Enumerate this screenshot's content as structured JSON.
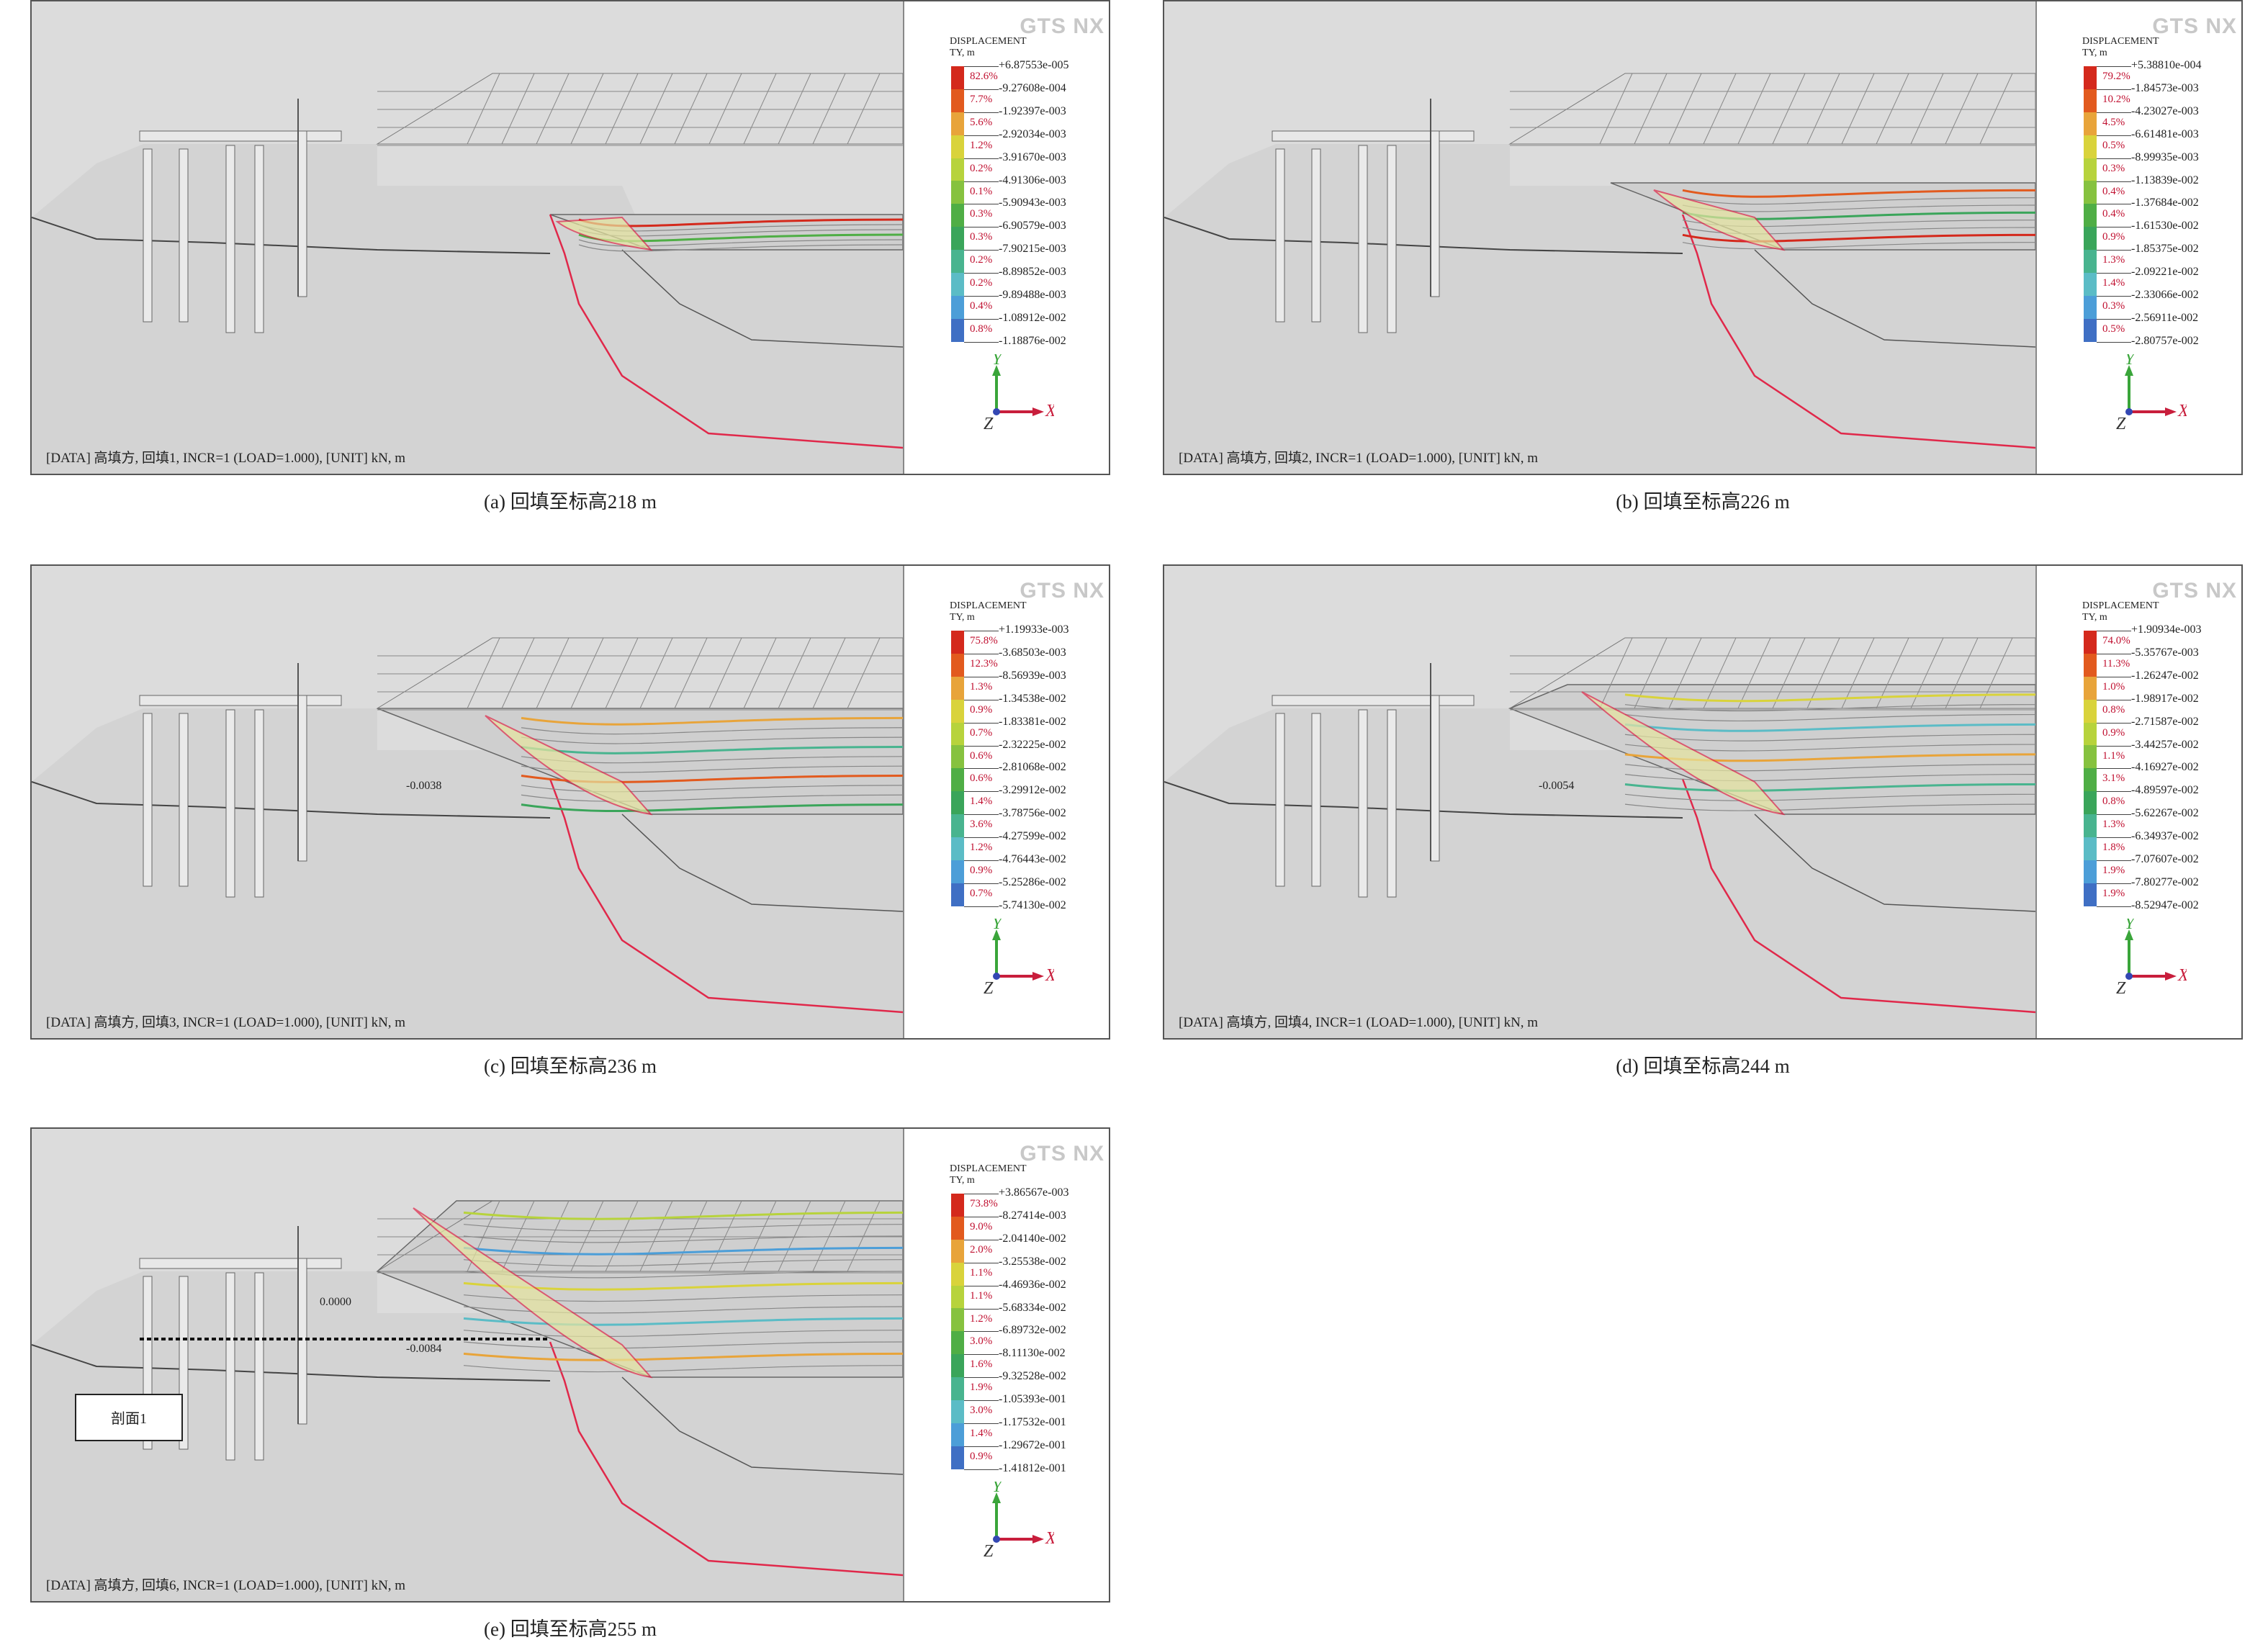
{
  "legend_title": "DISPLACEMENT",
  "legend_unit": "TY, m",
  "logo_text": "GTS NX",
  "axes": {
    "x": "X",
    "y": "Y",
    "z": "Z"
  },
  "colors": [
    "#d4291c",
    "#e25a1e",
    "#e8a43a",
    "#d9d33b",
    "#b7d33c",
    "#86c23f",
    "#4fae45",
    "#3aa55a",
    "#48b48f",
    "#5bbcc6",
    "#4c9ed8",
    "#3f6fc4",
    "#2d3f9a"
  ],
  "panels": [
    {
      "caption": "(a) 回填至标高218 m",
      "info": "[DATA] 高填方, 回填1, INCR=1 (LOAD=1.000), [UNIT] kN, m",
      "values": [
        "+6.87553e-005",
        "-9.27608e-004",
        "-1.92397e-003",
        "-2.92034e-003",
        "-3.91670e-003",
        "-4.91306e-003",
        "-5.90943e-003",
        "-6.90579e-003",
        "-7.90215e-003",
        "-8.89852e-003",
        "-9.89488e-003",
        "-1.08912e-002",
        "-1.18876e-002"
      ],
      "percents": [
        "82.6%",
        "7.7%",
        "5.6%",
        "1.2%",
        "0.2%",
        "0.1%",
        "0.3%",
        "0.3%",
        "0.2%",
        "0.2%",
        "0.4%",
        "0.8%"
      ],
      "labels": []
    },
    {
      "caption": "(b) 回填至标高226 m",
      "info": "[DATA] 高填方, 回填2, INCR=1 (LOAD=1.000), [UNIT] kN, m",
      "values": [
        "+5.38810e-004",
        "-1.84573e-003",
        "-4.23027e-003",
        "-6.61481e-003",
        "-8.99935e-003",
        "-1.13839e-002",
        "-1.37684e-002",
        "-1.61530e-002",
        "-1.85375e-002",
        "-2.09221e-002",
        "-2.33066e-002",
        "-2.56911e-002",
        "-2.80757e-002"
      ],
      "percents": [
        "79.2%",
        "10.2%",
        "4.5%",
        "0.5%",
        "0.3%",
        "0.4%",
        "0.4%",
        "0.9%",
        "1.3%",
        "1.4%",
        "0.3%",
        "0.5%"
      ],
      "labels": []
    },
    {
      "caption": "(c) 回填至标高236 m",
      "info": "[DATA] 高填方, 回填3, INCR=1 (LOAD=1.000), [UNIT] kN, m",
      "values": [
        "+1.19933e-003",
        "-3.68503e-003",
        "-8.56939e-003",
        "-1.34538e-002",
        "-1.83381e-002",
        "-2.32225e-002",
        "-2.81068e-002",
        "-3.29912e-002",
        "-3.78756e-002",
        "-4.27599e-002",
        "-4.76443e-002",
        "-5.25286e-002",
        "-5.74130e-002"
      ],
      "percents": [
        "75.8%",
        "12.3%",
        "1.3%",
        "0.9%",
        "0.7%",
        "0.6%",
        "0.6%",
        "1.4%",
        "3.6%",
        "1.2%",
        "0.9%",
        "0.7%"
      ],
      "labels": [
        "-0.0038"
      ]
    },
    {
      "caption": "(d) 回填至标高244 m",
      "info": "[DATA] 高填方, 回填4, INCR=1 (LOAD=1.000), [UNIT] kN, m",
      "values": [
        "+1.90934e-003",
        "-5.35767e-003",
        "-1.26247e-002",
        "-1.98917e-002",
        "-2.71587e-002",
        "-3.44257e-002",
        "-4.16927e-002",
        "-4.89597e-002",
        "-5.62267e-002",
        "-6.34937e-002",
        "-7.07607e-002",
        "-7.80277e-002",
        "-8.52947e-002"
      ],
      "percents": [
        "74.0%",
        "11.3%",
        "1.0%",
        "0.8%",
        "0.9%",
        "1.1%",
        "3.1%",
        "0.8%",
        "1.3%",
        "1.8%",
        "1.9%",
        "1.9%"
      ],
      "labels": [
        "-0.0054"
      ]
    },
    {
      "caption": "(e) 回填至标高255 m",
      "info": "[DATA] 高填方, 回填6, INCR=1 (LOAD=1.000), [UNIT] kN, m",
      "values": [
        "+3.86567e-003",
        "-8.27414e-003",
        "-2.04140e-002",
        "-3.25538e-002",
        "-4.46936e-002",
        "-5.68334e-002",
        "-6.89732e-002",
        "-8.11130e-002",
        "-9.32528e-002",
        "-1.05393e-001",
        "-1.17532e-001",
        "-1.29672e-001",
        "-1.41812e-001"
      ],
      "percents": [
        "73.8%",
        "9.0%",
        "2.0%",
        "1.1%",
        "1.1%",
        "1.2%",
        "3.0%",
        "1.6%",
        "1.9%",
        "3.0%",
        "1.4%",
        "0.9%"
      ],
      "labels": [
        "0.0000",
        "-0.0084"
      ],
      "callout": "剖面1"
    }
  ]
}
